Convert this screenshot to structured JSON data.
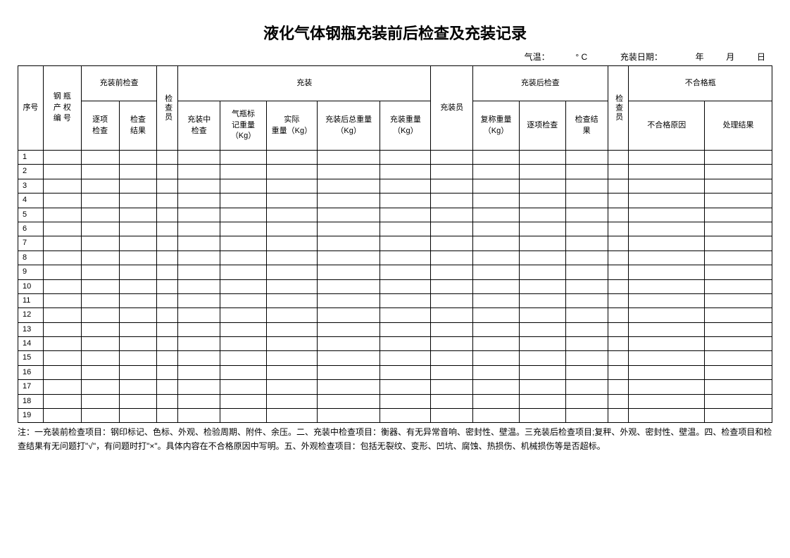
{
  "title": "液化气体钢瓶充装前后检查及充装记录",
  "top_info": {
    "temp_label": "气温：",
    "temp_unit": "° C",
    "date_label": "充装日期：",
    "year": "年",
    "month": "月",
    "day": "日"
  },
  "headers": {
    "seq": "序号",
    "cylinder_id": "钢 瓶\n产 权\n编 号",
    "pre_inspection": "充装前检查",
    "inspector1": "检查员",
    "filling": "充装",
    "filler": "充装员",
    "post_inspection": "充装后检查",
    "inspector2": "检查员",
    "unqualified": "不合格瓶",
    "item_check": "逐项\n检查",
    "check_result": "检查\n结果",
    "filling_check": "充装中\n检查",
    "marked_weight": "气瓶标\n记重量\n（Kg）",
    "actual_weight": "实际\n重量（Kg）",
    "total_weight_after": "充装后总重量\n（Kg）",
    "fill_weight": "充装重量\n（Kg）",
    "reweigh": "复称重量\n（Kg）",
    "item_check2": "逐项检查",
    "check_result2": "检查结\n果",
    "unqualified_reason": "不合格原因",
    "handling_result": "处理结果"
  },
  "rows": [
    {
      "seq": "1"
    },
    {
      "seq": "2"
    },
    {
      "seq": "3"
    },
    {
      "seq": "4"
    },
    {
      "seq": "5"
    },
    {
      "seq": "6"
    },
    {
      "seq": "7"
    },
    {
      "seq": "8"
    },
    {
      "seq": "9"
    },
    {
      "seq": "10"
    },
    {
      "seq": "11"
    },
    {
      "seq": "12"
    },
    {
      "seq": "13"
    },
    {
      "seq": "14"
    },
    {
      "seq": "15"
    },
    {
      "seq": "16"
    },
    {
      "seq": "17"
    },
    {
      "seq": "18"
    },
    {
      "seq": "19"
    }
  ],
  "note": "注：一充装前检查项目：钢印标记、色标、外观、检验周期、附件、余压。二、充装中检查项目：衡器、有无异常音响、密封性、壁温。三充装后检查项目;复秤、外观、密封性、壁温。四、检查项目和检查结果有无问题打\"√\"，有问题时打\"×\"。具体内容在不合格原因中写明。五、外观检查项目：包括无裂纹、变形、凹坑、腐蚀、热损伤、机械损伤等是否超标。",
  "col_widths": {
    "seq": "3%",
    "cylinder": "4%",
    "item_check": "4.5%",
    "result": "4.5%",
    "inspector": "2.5%",
    "fill_check": "5%",
    "marked_wt": "5%",
    "actual_wt": "6%",
    "total_wt": "7%",
    "fill_wt": "6%",
    "filler": "5%",
    "reweigh": "5%",
    "item_check2": "5%",
    "result2": "5%",
    "inspector2": "2.5%",
    "reason": "8%",
    "handling": "7%"
  }
}
